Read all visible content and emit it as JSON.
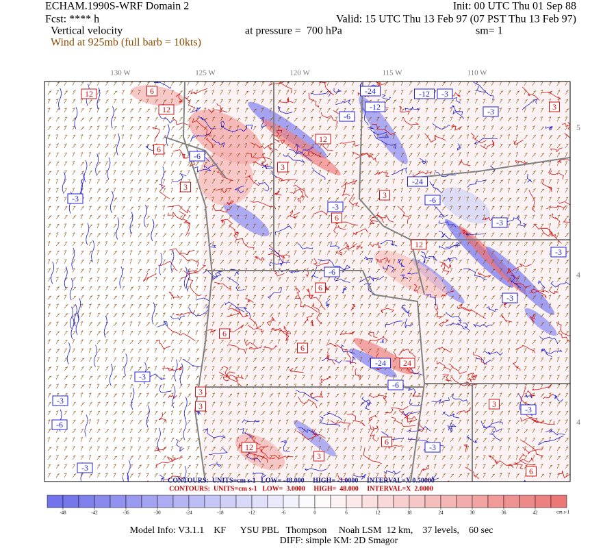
{
  "header": {
    "title": "ECHAM.1990S-WRF Domain 2",
    "init": "Init: 00 UTC Thu 01 Sep 88",
    "fcst": "Fcst: **** h",
    "valid": "Valid: 15 UTC Thu 13 Feb 97 (07 PST Thu 13 Feb 97)",
    "field": "Vertical velocity",
    "level": "at pressure =  700 hPa",
    "smooth": "sm= 1",
    "wind": "Wind at 925mb (full barb = 10kts)"
  },
  "map": {
    "lon_labels": [
      "130 W",
      "125 W",
      "120 W",
      "115 W",
      "110 W"
    ],
    "lat_labels": [
      "5",
      "4",
      "4"
    ],
    "contour_labels": [
      "12",
      "6",
      "12",
      "-12",
      "-24",
      "-12",
      "-3",
      "-3",
      "3",
      "-6",
      "12",
      "-6",
      "6",
      "3",
      "-3",
      "3",
      "-24",
      "-6",
      "3",
      "-3",
      "6",
      "-3",
      "12",
      "-3",
      "-6",
      "6",
      "-3",
      "6",
      "6",
      "-24",
      "24",
      "-3",
      "-6",
      "3",
      "-3",
      "-6",
      "3",
      "12",
      "-3",
      "3",
      "-3",
      "6",
      "3",
      "-3",
      "6"
    ]
  },
  "contour_info": {
    "negative": "CONTOURS:  UNITS=cm s-1   LOW= -48.000     HIGH= -3.0000     INTERVAL=X 0.50000",
    "positive": "CONTOURS:  UNITS=cm s-1   LOW=  3.0000     HIGH=  48.000     INTERVAL=X  2.0000"
  },
  "colorbar": {
    "ticks": [
      -48,
      -42,
      -36,
      -30,
      -24,
      -18,
      -12,
      -6,
      0,
      6,
      12,
      18,
      24,
      30,
      36,
      42
    ],
    "units": "cm s-1"
  },
  "footer": {
    "model": "Model Info: V3.1.1    KF      YSU PBL   Thompson     Noah LSM  12 km,    37 levels,    60 sec",
    "diff": "DIFF: simple KM: 2D Smagor"
  }
}
